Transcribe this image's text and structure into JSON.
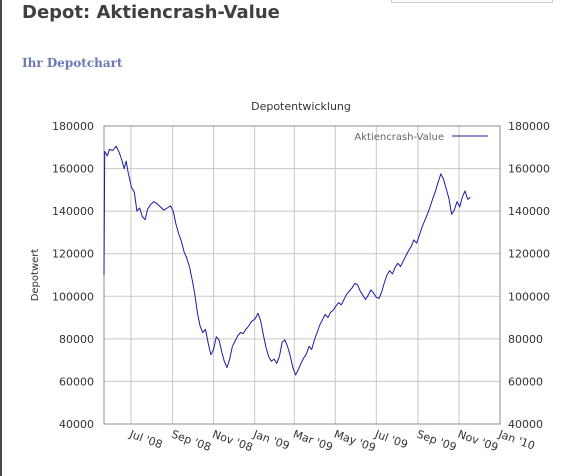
{
  "page": {
    "title": "Depot: Aktiencrash-Value",
    "section_title": "Ihr Depotchart"
  },
  "colors": {
    "series": "#1c1c9e",
    "grid": "#c8c8c8",
    "section_title": "#6b79b3"
  },
  "chart_data": {
    "type": "line",
    "title": "Depotentwicklung",
    "ylabel": "Depotwert",
    "xlabel": "",
    "ylim": [
      40000,
      180000
    ],
    "y_ticks": [
      40000,
      60000,
      80000,
      100000,
      120000,
      140000,
      160000,
      180000
    ],
    "x_range": [
      "2008-05-22",
      "2010-01-01"
    ],
    "x_ticks": [
      {
        "date": "2008-07-01",
        "label": "Jul '08"
      },
      {
        "date": "2008-09-01",
        "label": "Sep '08"
      },
      {
        "date": "2008-11-01",
        "label": "Nov '08"
      },
      {
        "date": "2009-01-01",
        "label": "Jan '09"
      },
      {
        "date": "2009-03-01",
        "label": "Mar '09"
      },
      {
        "date": "2009-05-01",
        "label": "May '09"
      },
      {
        "date": "2009-07-01",
        "label": "Jul '09"
      },
      {
        "date": "2009-09-01",
        "label": "Sep '09"
      },
      {
        "date": "2009-11-01",
        "label": "Nov '09"
      },
      {
        "date": "2010-01-01",
        "label": "Jan '10"
      }
    ],
    "grid": true,
    "legend_position": "top-right",
    "series": [
      {
        "name": "Aktiencrash-Value",
        "points": [
          [
            "2008-05-22",
            110000
          ],
          [
            "2008-05-23",
            168000
          ],
          [
            "2008-05-27",
            166000
          ],
          [
            "2008-05-30",
            169000
          ],
          [
            "2008-06-04",
            168500
          ],
          [
            "2008-06-09",
            170500
          ],
          [
            "2008-06-13",
            168000
          ],
          [
            "2008-06-17",
            164500
          ],
          [
            "2008-06-21",
            160000
          ],
          [
            "2008-06-24",
            163500
          ],
          [
            "2008-06-27",
            158000
          ],
          [
            "2008-07-02",
            151000
          ],
          [
            "2008-07-06",
            149000
          ],
          [
            "2008-07-10",
            140000
          ],
          [
            "2008-07-14",
            141500
          ],
          [
            "2008-07-18",
            137500
          ],
          [
            "2008-07-22",
            136000
          ],
          [
            "2008-07-26",
            141000
          ],
          [
            "2008-07-30",
            143000
          ],
          [
            "2008-08-04",
            144500
          ],
          [
            "2008-08-09",
            143500
          ],
          [
            "2008-08-14",
            142000
          ],
          [
            "2008-08-19",
            140500
          ],
          [
            "2008-08-24",
            141500
          ],
          [
            "2008-08-29",
            142500
          ],
          [
            "2008-09-02",
            140000
          ],
          [
            "2008-09-06",
            134000
          ],
          [
            "2008-09-10",
            129500
          ],
          [
            "2008-09-14",
            126000
          ],
          [
            "2008-09-18",
            121000
          ],
          [
            "2008-09-22",
            118000
          ],
          [
            "2008-09-26",
            114000
          ],
          [
            "2008-09-30",
            108000
          ],
          [
            "2008-10-04",
            101000
          ],
          [
            "2008-10-08",
            92000
          ],
          [
            "2008-10-12",
            86000
          ],
          [
            "2008-10-16",
            83000
          ],
          [
            "2008-10-20",
            84500
          ],
          [
            "2008-10-24",
            78000
          ],
          [
            "2008-10-28",
            72500
          ],
          [
            "2008-11-01",
            75000
          ],
          [
            "2008-11-05",
            81000
          ],
          [
            "2008-11-09",
            79500
          ],
          [
            "2008-11-13",
            74000
          ],
          [
            "2008-11-17",
            69500
          ],
          [
            "2008-11-21",
            66500
          ],
          [
            "2008-11-25",
            70500
          ],
          [
            "2008-11-29",
            76500
          ],
          [
            "2008-12-03",
            79000
          ],
          [
            "2008-12-07",
            81500
          ],
          [
            "2008-12-11",
            83000
          ],
          [
            "2008-12-15",
            82500
          ],
          [
            "2008-12-19",
            84500
          ],
          [
            "2008-12-23",
            86000
          ],
          [
            "2008-12-27",
            88000
          ],
          [
            "2009-01-02",
            89500
          ],
          [
            "2009-01-06",
            92000
          ],
          [
            "2009-01-10",
            88500
          ],
          [
            "2009-01-14",
            82000
          ],
          [
            "2009-01-18",
            76000
          ],
          [
            "2009-01-22",
            71500
          ],
          [
            "2009-01-26",
            69500
          ],
          [
            "2009-01-30",
            70500
          ],
          [
            "2009-02-03",
            68500
          ],
          [
            "2009-02-07",
            72000
          ],
          [
            "2009-02-11",
            78500
          ],
          [
            "2009-02-15",
            79500
          ],
          [
            "2009-02-19",
            76500
          ],
          [
            "2009-02-23",
            72000
          ],
          [
            "2009-02-27",
            66500
          ],
          [
            "2009-03-03",
            63000
          ],
          [
            "2009-03-07",
            65500
          ],
          [
            "2009-03-11",
            68500
          ],
          [
            "2009-03-15",
            71000
          ],
          [
            "2009-03-19",
            73000
          ],
          [
            "2009-03-23",
            76500
          ],
          [
            "2009-03-27",
            75000
          ],
          [
            "2009-03-31",
            79500
          ],
          [
            "2009-04-04",
            83000
          ],
          [
            "2009-04-08",
            86500
          ],
          [
            "2009-04-12",
            89000
          ],
          [
            "2009-04-16",
            91500
          ],
          [
            "2009-04-20",
            90000
          ],
          [
            "2009-04-24",
            92500
          ],
          [
            "2009-04-28",
            93500
          ],
          [
            "2009-05-02",
            95500
          ],
          [
            "2009-05-06",
            97000
          ],
          [
            "2009-05-10",
            96000
          ],
          [
            "2009-05-14",
            98500
          ],
          [
            "2009-05-18",
            101000
          ],
          [
            "2009-05-22",
            102500
          ],
          [
            "2009-05-26",
            104000
          ],
          [
            "2009-05-30",
            106000
          ],
          [
            "2009-06-03",
            105500
          ],
          [
            "2009-06-07",
            102500
          ],
          [
            "2009-06-11",
            100500
          ],
          [
            "2009-06-15",
            98500
          ],
          [
            "2009-06-19",
            100500
          ],
          [
            "2009-06-23",
            103000
          ],
          [
            "2009-06-27",
            101500
          ],
          [
            "2009-07-01",
            99500
          ],
          [
            "2009-07-05",
            99000
          ],
          [
            "2009-07-09",
            102000
          ],
          [
            "2009-07-13",
            106500
          ],
          [
            "2009-07-17",
            110000
          ],
          [
            "2009-07-21",
            112000
          ],
          [
            "2009-07-25",
            110500
          ],
          [
            "2009-07-29",
            113500
          ],
          [
            "2009-08-02",
            115500
          ],
          [
            "2009-08-06",
            114000
          ],
          [
            "2009-08-10",
            116500
          ],
          [
            "2009-08-14",
            119000
          ],
          [
            "2009-08-18",
            121500
          ],
          [
            "2009-08-22",
            123500
          ],
          [
            "2009-08-26",
            126500
          ],
          [
            "2009-08-30",
            125000
          ],
          [
            "2009-09-03",
            128500
          ],
          [
            "2009-09-07",
            132500
          ],
          [
            "2009-09-11",
            135500
          ],
          [
            "2009-09-15",
            138500
          ],
          [
            "2009-09-19",
            142000
          ],
          [
            "2009-09-23",
            146000
          ],
          [
            "2009-09-27",
            149500
          ],
          [
            "2009-10-01",
            153500
          ],
          [
            "2009-10-05",
            157500
          ],
          [
            "2009-10-09",
            155000
          ],
          [
            "2009-10-13",
            150500
          ],
          [
            "2009-10-17",
            146000
          ],
          [
            "2009-10-21",
            138500
          ],
          [
            "2009-10-25",
            140500
          ],
          [
            "2009-10-29",
            144500
          ],
          [
            "2009-11-02",
            142000
          ],
          [
            "2009-11-06",
            146500
          ],
          [
            "2009-11-10",
            149500
          ],
          [
            "2009-11-14",
            145500
          ],
          [
            "2009-11-18",
            146500
          ]
        ]
      }
    ]
  }
}
